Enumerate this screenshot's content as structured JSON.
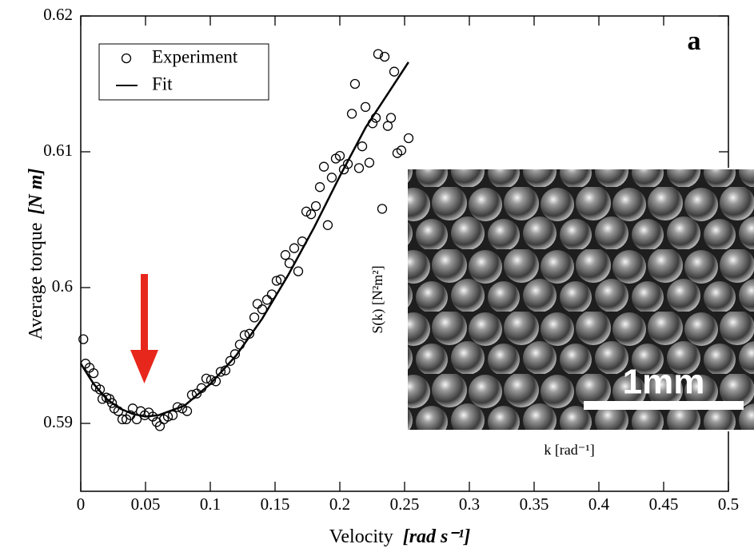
{
  "chart_data": {
    "type": "scatter",
    "panel_label": "a",
    "xlabel": "Velocity",
    "xunit": "[rad s⁻¹]",
    "ylabel": "Average torque",
    "yunit": "[N m]",
    "xlim": [
      0,
      0.5
    ],
    "ylim": [
      0.585,
      0.62
    ],
    "xticks": [
      0,
      0.05,
      0.1,
      0.15,
      0.2,
      0.25,
      0.3,
      0.35,
      0.4,
      0.45,
      0.5
    ],
    "yticks": [
      0.59,
      0.6,
      0.61,
      0.62
    ],
    "legend": "upper left",
    "series": [
      {
        "name": "Experiment",
        "style": "markers",
        "color": "#000000",
        "x": [
          0.002,
          0.0037,
          0.0068,
          0.0099,
          0.0117,
          0.0148,
          0.0167,
          0.0198,
          0.0222,
          0.0241,
          0.0259,
          0.029,
          0.0321,
          0.0352,
          0.0383,
          0.0401,
          0.0432,
          0.0463,
          0.0494,
          0.0525,
          0.0556,
          0.0586,
          0.0611,
          0.0642,
          0.0673,
          0.071,
          0.0747,
          0.0784,
          0.0821,
          0.0858,
          0.0895,
          0.0932,
          0.0969,
          0.1006,
          0.1043,
          0.108,
          0.1117,
          0.1154,
          0.1191,
          0.1228,
          0.1265,
          0.1302,
          0.134,
          0.1364,
          0.1401,
          0.1438,
          0.1475,
          0.1512,
          0.1543,
          0.158,
          0.1611,
          0.1648,
          0.1679,
          0.171,
          0.1741,
          0.1778,
          0.1815,
          0.1846,
          0.1877,
          0.1907,
          0.1938,
          0.1969,
          0.2,
          0.2031,
          0.2062,
          0.2093,
          0.2117,
          0.2148,
          0.2173,
          0.2198,
          0.2228,
          0.2253,
          0.2278,
          0.2296,
          0.2327,
          0.2346,
          0.237,
          0.2395,
          0.242,
          0.2444,
          0.2475,
          0.2531
        ],
        "values": [
          0.5962,
          0.5944,
          0.5941,
          0.5937,
          0.5927,
          0.5925,
          0.5918,
          0.5919,
          0.5918,
          0.5915,
          0.5911,
          0.5909,
          0.5903,
          0.5903,
          0.5906,
          0.5911,
          0.5903,
          0.5909,
          0.5906,
          0.5908,
          0.5905,
          0.5901,
          0.5898,
          0.5903,
          0.5905,
          0.5906,
          0.5912,
          0.5911,
          0.5909,
          0.5921,
          0.5922,
          0.5926,
          0.5933,
          0.5932,
          0.5931,
          0.5938,
          0.5939,
          0.5946,
          0.5951,
          0.5958,
          0.5965,
          0.5966,
          0.5978,
          0.5988,
          0.5984,
          0.5991,
          0.5995,
          0.6005,
          0.6006,
          0.6024,
          0.6018,
          0.6029,
          0.6012,
          0.6034,
          0.6056,
          0.6054,
          0.606,
          0.6074,
          0.6089,
          0.6046,
          0.6081,
          0.6095,
          0.6097,
          0.6087,
          0.6091,
          0.6128,
          0.615,
          0.6088,
          0.6104,
          0.6133,
          0.6092,
          0.6121,
          0.6125,
          0.6172,
          0.6058,
          0.617,
          0.6119,
          0.6125,
          0.6159,
          0.6099,
          0.6101,
          0.611
        ]
      },
      {
        "name": "Fit",
        "style": "line",
        "color": "#000000",
        "x": [
          0,
          0.01,
          0.02,
          0.03,
          0.04,
          0.05,
          0.06,
          0.08,
          0.1,
          0.12,
          0.14,
          0.16,
          0.18,
          0.2,
          0.22,
          0.24,
          0.253
        ],
        "values": [
          0.5944,
          0.5929,
          0.5918,
          0.5911,
          0.5907,
          0.5905,
          0.5906,
          0.5913,
          0.5929,
          0.595,
          0.5977,
          0.6009,
          0.6044,
          0.6082,
          0.6118,
          0.6147,
          0.6166
        ]
      }
    ],
    "inset": {
      "ylabel": "S(k)  [N²m²]",
      "xlabel": "k [rad⁻¹]",
      "scale_label": "1mm"
    }
  }
}
